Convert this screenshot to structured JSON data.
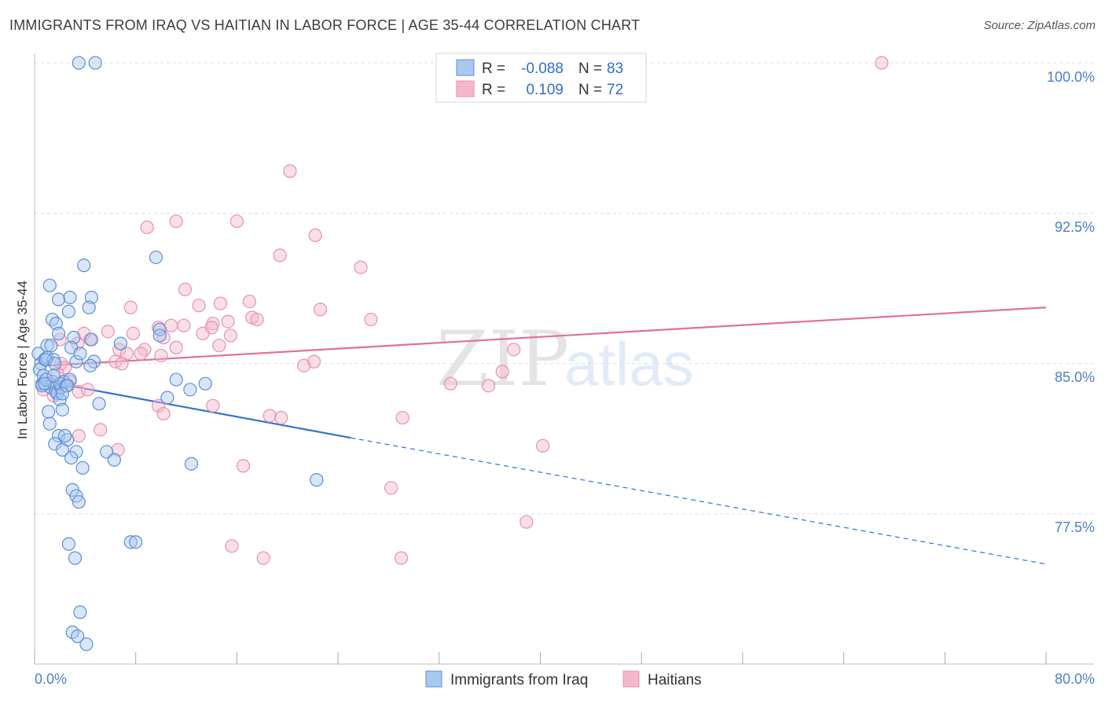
{
  "title": "IMMIGRANTS FROM IRAQ VS HAITIAN IN LABOR FORCE | AGE 35-44 CORRELATION CHART",
  "source": "Source: ZipAtlas.com",
  "watermark": {
    "zip": "ZIP",
    "atlas": "atlas"
  },
  "colors": {
    "blue_fill": "#a9c8f0",
    "blue_stroke": "#5b8fd6",
    "blue_line": "#2f72d0",
    "pink_fill": "#f5b8cb",
    "pink_stroke": "#e890ac",
    "pink_line": "#e0709a",
    "axis_text": "#4a7fd4",
    "grid": "#dddddd"
  },
  "legend": {
    "r_label": "R =",
    "n_label": "N =",
    "blue": {
      "r": "-0.088",
      "n": "83"
    },
    "pink": {
      "r": "0.109",
      "n": "72"
    }
  },
  "bottom_legend": {
    "blue": "Immigrants from Iraq",
    "pink": "Haitians"
  },
  "chart_data": {
    "type": "scatter",
    "title": "IMMIGRANTS FROM IRAQ VS HAITIAN IN LABOR FORCE | AGE 35-44 CORRELATION CHART",
    "xlabel": "",
    "ylabel": "In Labor Force | Age 35-44",
    "xlim": [
      0,
      80
    ],
    "ylim": [
      70.5,
      100.5
    ],
    "x_tick_labels": [
      "0.0%",
      "80.0%"
    ],
    "y_ticks": [
      77.5,
      85.0,
      92.5,
      100.0
    ],
    "y_tick_labels": [
      "77.5%",
      "85.0%",
      "92.5%",
      "100.0%"
    ],
    "series": [
      {
        "name": "Immigrants from Iraq",
        "r": -0.088,
        "n": 83,
        "trend": {
          "x0": 1.0,
          "y0": 84.1,
          "x1": 25.0,
          "y1": 81.3,
          "x_end": 80.0,
          "y_end": 75.0
        },
        "points": [
          [
            3.5,
            100
          ],
          [
            4.8,
            100
          ],
          [
            0.3,
            85.5
          ],
          [
            0.5,
            85
          ],
          [
            0.6,
            84
          ],
          [
            0.8,
            85.2
          ],
          [
            1,
            85.3
          ],
          [
            1.2,
            84
          ],
          [
            1.3,
            83.8
          ],
          [
            1.5,
            85.2
          ],
          [
            0.4,
            84.7
          ],
          [
            1.4,
            84.1
          ],
          [
            1.7,
            83.6
          ],
          [
            1.8,
            83.5
          ],
          [
            2,
            83.2
          ],
          [
            2.1,
            83.8
          ],
          [
            2.2,
            82.7
          ],
          [
            1.1,
            82.6
          ],
          [
            1.2,
            82
          ],
          [
            1.9,
            81.4
          ],
          [
            1.6,
            81
          ],
          [
            2.6,
            81.2
          ],
          [
            0.9,
            85.2
          ],
          [
            1,
            85.9
          ],
          [
            1.3,
            85.9
          ],
          [
            1.6,
            85
          ],
          [
            1.4,
            87.2
          ],
          [
            1.2,
            88.9
          ],
          [
            1.9,
            88.2
          ],
          [
            1.7,
            87
          ],
          [
            2.8,
            88.3
          ],
          [
            2.7,
            87.6
          ],
          [
            3.1,
            86.3
          ],
          [
            2.9,
            85.8
          ],
          [
            3.3,
            85.1
          ],
          [
            2.3,
            84.1
          ],
          [
            2.8,
            84.2
          ],
          [
            2,
            84
          ],
          [
            2.5,
            83.9
          ],
          [
            3.3,
            80.6
          ],
          [
            3.8,
            79.8
          ],
          [
            2.9,
            80.3
          ],
          [
            2.4,
            81.4
          ],
          [
            2.2,
            80.7
          ],
          [
            3,
            78.7
          ],
          [
            3.3,
            78.4
          ],
          [
            3.5,
            78.1
          ],
          [
            2.7,
            76
          ],
          [
            3.2,
            75.3
          ],
          [
            3.6,
            72.6
          ],
          [
            3,
            71.6
          ],
          [
            3.4,
            71.4
          ],
          [
            4.1,
            71
          ],
          [
            4.5,
            88.3
          ],
          [
            3.9,
            89.9
          ],
          [
            4.3,
            87.8
          ],
          [
            4.5,
            86.2
          ],
          [
            4.7,
            85.1
          ],
          [
            5.1,
            83
          ],
          [
            5.7,
            80.6
          ],
          [
            6.3,
            80.2
          ],
          [
            9.6,
            90.3
          ],
          [
            9.9,
            86.7
          ],
          [
            9.9,
            86.4
          ],
          [
            10.5,
            83.3
          ],
          [
            11.2,
            84.2
          ],
          [
            12.3,
            83.7
          ],
          [
            13.5,
            84
          ],
          [
            12.4,
            80
          ],
          [
            22.3,
            79.2
          ],
          [
            7.6,
            76.1
          ],
          [
            8,
            76.1
          ],
          [
            6.8,
            86
          ],
          [
            0.6,
            83.9
          ],
          [
            0.7,
            84.4
          ],
          [
            0.9,
            84.2
          ],
          [
            1.5,
            84.4
          ],
          [
            2.6,
            83.9
          ],
          [
            1.9,
            86.5
          ],
          [
            0.8,
            84
          ],
          [
            3.6,
            85.5
          ],
          [
            4.4,
            84.9
          ],
          [
            2.2,
            83.5
          ]
        ]
      },
      {
        "name": "Haitians",
        "r": 0.109,
        "n": 72,
        "trend": {
          "x0": 1.0,
          "y0": 84.9,
          "x1": 80.0,
          "y1": 87.8
        },
        "points": [
          [
            67,
            100
          ],
          [
            20.2,
            94.6
          ],
          [
            8.9,
            91.8
          ],
          [
            11.2,
            92.1
          ],
          [
            16,
            92.1
          ],
          [
            22.2,
            91.4
          ],
          [
            19.4,
            90.4
          ],
          [
            25.8,
            89.8
          ],
          [
            11.9,
            88.7
          ],
          [
            17,
            88.1
          ],
          [
            14.7,
            88
          ],
          [
            13,
            87.9
          ],
          [
            7.6,
            87.8
          ],
          [
            22.6,
            87.7
          ],
          [
            17.2,
            87.3
          ],
          [
            17.6,
            87.2
          ],
          [
            26.6,
            87.2
          ],
          [
            15.3,
            87.1
          ],
          [
            14.1,
            87
          ],
          [
            11.8,
            86.9
          ],
          [
            10.8,
            86.9
          ],
          [
            14,
            86.8
          ],
          [
            9.8,
            86.8
          ],
          [
            5.8,
            86.6
          ],
          [
            7.8,
            86.5
          ],
          [
            13.3,
            86.5
          ],
          [
            15.5,
            86.4
          ],
          [
            10.2,
            86.3
          ],
          [
            4.4,
            86.2
          ],
          [
            3.9,
            86.5
          ],
          [
            14.6,
            85.9
          ],
          [
            11.2,
            85.8
          ],
          [
            8.7,
            85.7
          ],
          [
            6.7,
            85.7
          ],
          [
            8.4,
            85.5
          ],
          [
            7.3,
            85.5
          ],
          [
            10,
            85.4
          ],
          [
            6.4,
            85.1
          ],
          [
            22.1,
            85.1
          ],
          [
            21.3,
            84.9
          ],
          [
            6.9,
            85
          ],
          [
            37.9,
            85.7
          ],
          [
            37,
            84.6
          ],
          [
            2.1,
            85
          ],
          [
            2.4,
            84.8
          ],
          [
            2.8,
            84.1
          ],
          [
            0.8,
            84
          ],
          [
            0.7,
            83.7
          ],
          [
            1.5,
            83.4
          ],
          [
            3.5,
            83.6
          ],
          [
            32.9,
            84
          ],
          [
            35.9,
            83.9
          ],
          [
            9.8,
            82.9
          ],
          [
            10.2,
            82.5
          ],
          [
            14.1,
            82.9
          ],
          [
            18.6,
            82.4
          ],
          [
            19.5,
            82.3
          ],
          [
            29.1,
            82.3
          ],
          [
            5.2,
            81.7
          ],
          [
            3.5,
            81.4
          ],
          [
            6.6,
            80.7
          ],
          [
            16.5,
            79.9
          ],
          [
            28.2,
            78.8
          ],
          [
            40.2,
            80.9
          ],
          [
            38.9,
            77.1
          ],
          [
            15.6,
            75.9
          ],
          [
            18.1,
            75.3
          ],
          [
            29,
            75.3
          ],
          [
            2,
            86.2
          ],
          [
            1.8,
            84.5
          ],
          [
            3.4,
            86
          ],
          [
            4.2,
            83.7
          ]
        ]
      }
    ]
  }
}
